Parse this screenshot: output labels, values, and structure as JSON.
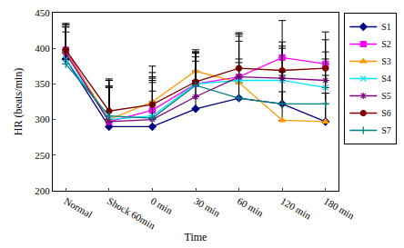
{
  "chart_data": {
    "type": "line",
    "x_label": "Time",
    "y_label": "HR (beats/min)",
    "categories": [
      "Normal",
      "Shock 60min",
      "0 min",
      "30 min",
      "60 min",
      "120 min",
      "180 min"
    ],
    "ylim": [
      200,
      450
    ],
    "yticks": [
      200,
      250,
      300,
      350,
      400,
      450
    ],
    "grid": false,
    "legend": "right",
    "series": [
      {
        "name": "S1",
        "color": "#000080",
        "marker": "diamond",
        "values": [
          385,
          290,
          290,
          315,
          330,
          322,
          297
        ],
        "error_plus": [
          45,
          55,
          50,
          40,
          50,
          40,
          40
        ]
      },
      {
        "name": "S2",
        "color": "#FF00FF",
        "marker": "square",
        "values": [
          398,
          297,
          313,
          350,
          360,
          387,
          378
        ],
        "error_plus": [
          35,
          50,
          45,
          45,
          60,
          52,
          45
        ]
      },
      {
        "name": "S3",
        "color": "#FF9900",
        "marker": "triangle-up",
        "values": [
          395,
          300,
          325,
          368,
          352,
          299,
          297
        ],
        "error_plus": [
          40,
          45,
          50,
          30,
          65,
          40,
          40
        ]
      },
      {
        "name": "S4",
        "color": "#00E5FF",
        "marker": "x-thin-open",
        "values": [
          385,
          300,
          305,
          350,
          355,
          355,
          345
        ],
        "error_plus": [
          45,
          55,
          55,
          45,
          55,
          45,
          40
        ]
      },
      {
        "name": "S5",
        "color": "#800080",
        "marker": "asterisk-open",
        "values": [
          393,
          297,
          300,
          332,
          360,
          358,
          355
        ],
        "error_plus": [
          40,
          50,
          55,
          50,
          60,
          45,
          40
        ]
      },
      {
        "name": "S6",
        "color": "#800000",
        "marker": "circle",
        "values": [
          398,
          312,
          321,
          353,
          372,
          369,
          372
        ],
        "error_plus": [
          35,
          45,
          45,
          40,
          50,
          40,
          40
        ]
      },
      {
        "name": "S7",
        "color": "#008080",
        "marker": "cross-thin-open",
        "values": [
          378,
          305,
          302,
          348,
          330,
          322,
          322
        ],
        "error_plus": [
          45,
          50,
          50,
          40,
          55,
          45,
          40
        ]
      }
    ]
  }
}
